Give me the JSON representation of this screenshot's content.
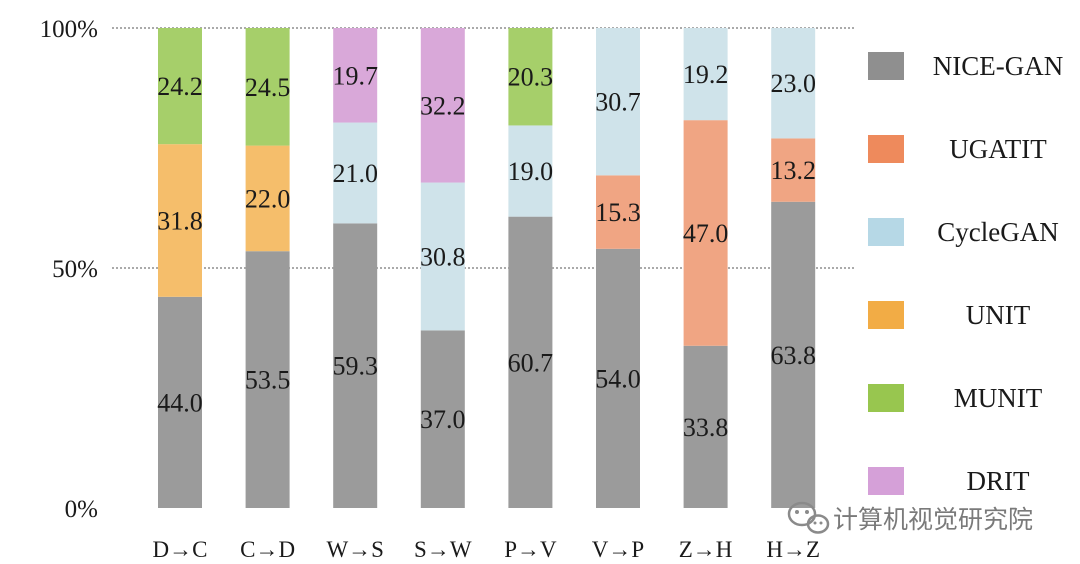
{
  "chart_data": {
    "type": "bar",
    "stacked": true,
    "normalized": true,
    "categories": [
      "D→C",
      "C→D",
      "W→S",
      "S→W",
      "P→V",
      "V→P",
      "Z→H",
      "H→Z"
    ],
    "y_ticks": [
      "0%",
      "50%",
      "100%"
    ],
    "ylim": [
      0,
      100
    ],
    "gridlines_at": [
      50,
      100
    ],
    "legend": {
      "placement": "right"
    },
    "series": [
      {
        "name": "NICE-GAN",
        "color": "#9b9b9b",
        "values": [
          44.0,
          53.5,
          59.3,
          37.0,
          60.7,
          54.0,
          33.8,
          63.8
        ]
      },
      {
        "name": "UGATIT",
        "color": "#f0a583",
        "values": [
          null,
          null,
          null,
          null,
          null,
          15.3,
          47.0,
          13.2
        ]
      },
      {
        "name": "CycleGAN",
        "color": "#cfe3ea",
        "values": [
          null,
          null,
          21.0,
          30.8,
          19.0,
          30.7,
          19.2,
          23.0
        ]
      },
      {
        "name": "UNIT",
        "color": "#f5be6b",
        "values": [
          31.8,
          22.0,
          null,
          null,
          null,
          null,
          null,
          null
        ]
      },
      {
        "name": "MUNIT",
        "color": "#a6cf6a",
        "values": [
          24.2,
          24.5,
          null,
          null,
          20.3,
          null,
          null,
          null
        ]
      },
      {
        "name": "DRIT",
        "color": "#d9a8d9",
        "values": [
          null,
          null,
          19.7,
          32.2,
          null,
          null,
          null,
          null
        ]
      }
    ],
    "legend_swatch_colors": [
      "#8f8f8f",
      "#ee8a5c",
      "#b6d8e6",
      "#f2ac45",
      "#98c64f",
      "#d5a0d8"
    ]
  },
  "watermark": {
    "text": "计算机视觉研究院",
    "icon": "wechat-icon"
  }
}
